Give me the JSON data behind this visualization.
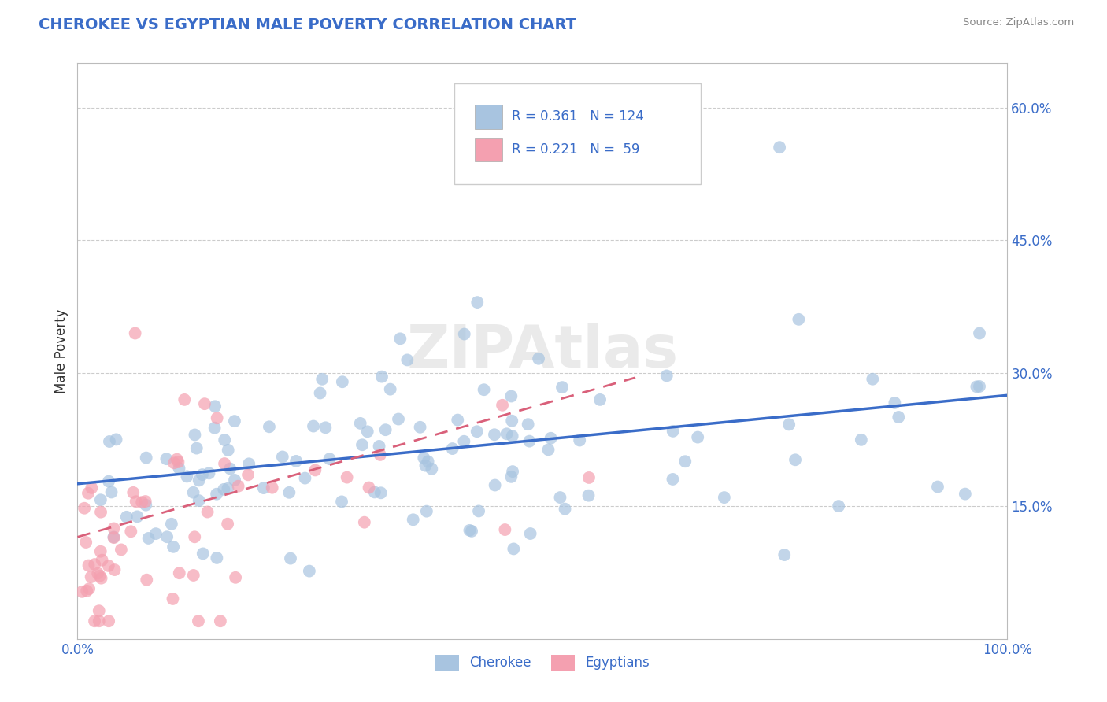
{
  "title": "CHEROKEE VS EGYPTIAN MALE POVERTY CORRELATION CHART",
  "source_text": "Source: ZipAtlas.com",
  "ylabel": "Male Poverty",
  "xlim": [
    0,
    1
  ],
  "ylim": [
    0,
    0.65
  ],
  "x_ticks": [
    0,
    0.25,
    0.5,
    0.75,
    1.0
  ],
  "x_tick_labels": [
    "0.0%",
    "",
    "",
    "",
    "100.0%"
  ],
  "y_ticks": [
    0.15,
    0.3,
    0.45,
    0.6
  ],
  "y_tick_labels": [
    "15.0%",
    "30.0%",
    "45.0%",
    "60.0%"
  ],
  "cherokee_color": "#a8c4e0",
  "egyptian_color": "#f4a0b0",
  "cherokee_line_color": "#3a6cc8",
  "egyptian_line_color": "#d9607a",
  "cherokee_R": 0.361,
  "cherokee_N": 124,
  "egyptian_R": 0.221,
  "egyptian_N": 59,
  "watermark": "ZIPAtlas",
  "legend_cherokee_label": "Cherokee",
  "legend_egyptian_label": "Egyptians",
  "background_color": "#ffffff",
  "grid_color": "#cccccc",
  "title_color": "#3a6cc8",
  "axis_color": "#888888",
  "cherokee_trend_x0": 0.0,
  "cherokee_trend_y0": 0.175,
  "cherokee_trend_x1": 1.0,
  "cherokee_trend_y1": 0.275,
  "egyptian_trend_x0": 0.0,
  "egyptian_trend_y0": 0.115,
  "egyptian_trend_x1": 0.6,
  "egyptian_trend_y1": 0.295
}
